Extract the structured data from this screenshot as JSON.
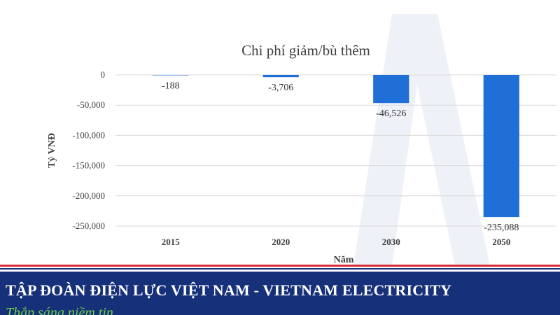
{
  "chart_data": {
    "type": "bar",
    "title": "Chi phí giảm/bù thêm",
    "xlabel": "Năm",
    "ylabel": "Tỷ VNĐ",
    "categories": [
      "2015",
      "2020",
      "2030",
      "2050"
    ],
    "values": [
      -188,
      -3706,
      -46526,
      -235088
    ],
    "value_labels": [
      "-188",
      "-3,706",
      "-46,526",
      "-235,088"
    ],
    "ylim": [
      -250000,
      0
    ],
    "yticks": [
      0,
      -50000,
      -100000,
      -150000,
      -200000,
      -250000
    ],
    "ytick_labels": [
      "0",
      "-50,000",
      "-100,000",
      "-150,000",
      "-200,000",
      "-250,000"
    ],
    "grid": true,
    "bar_color": "#1f6fd6",
    "grid_color": "#d9d9d9"
  },
  "footer": {
    "title": "TẬP ĐOÀN ĐIỆN LỰC VIỆT NAM - VIETNAM ELECTRICITY",
    "subtitle": "Thắp sáng niềm tin",
    "background_color": "#16307a",
    "stripe_color": "#d72d3a",
    "subtitle_color": "#6fcf4a"
  }
}
